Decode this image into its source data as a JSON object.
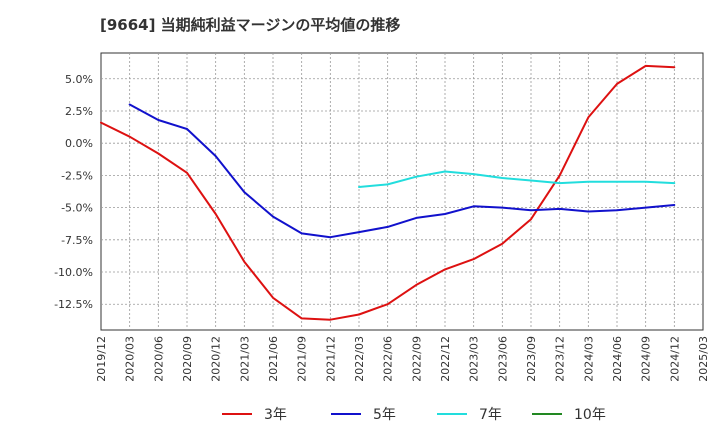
{
  "chart_data": {
    "type": "line",
    "title": "[9664]  当期純利益マージンの平均値の推移",
    "xlabel": "",
    "ylabel": "",
    "x_ticks": [
      "2019/12",
      "2020/03",
      "2020/06",
      "2020/09",
      "2020/12",
      "2021/03",
      "2021/06",
      "2021/09",
      "2021/12",
      "2022/03",
      "2022/06",
      "2022/09",
      "2022/12",
      "2023/03",
      "2023/06",
      "2023/09",
      "2023/12",
      "2024/03",
      "2024/06",
      "2024/09",
      "2024/12",
      "2025/03"
    ],
    "y_ticks": [
      5.0,
      2.5,
      0.0,
      -2.5,
      -5.0,
      -7.5,
      -10.0,
      -12.5
    ],
    "y_tick_labels": [
      "5.0%",
      "2.5%",
      "0.0%",
      "-2.5%",
      "-5.0%",
      "-7.5%",
      "-10.0%",
      "-12.5%"
    ],
    "ylim": [
      -14.5,
      7.0
    ],
    "grid": true,
    "legend_position": "bottom",
    "series": [
      {
        "name": "3年",
        "color": "#dd1111",
        "points": [
          [
            "2019/12",
            1.6
          ],
          [
            "2020/03",
            0.5
          ],
          [
            "2020/06",
            -0.8
          ],
          [
            "2020/09",
            -2.3
          ],
          [
            "2020/12",
            -5.5
          ],
          [
            "2021/03",
            -9.2
          ],
          [
            "2021/06",
            -12.0
          ],
          [
            "2021/09",
            -13.6
          ],
          [
            "2021/12",
            -13.7
          ],
          [
            "2022/03",
            -13.3
          ],
          [
            "2022/06",
            -12.5
          ],
          [
            "2022/09",
            -11.0
          ],
          [
            "2022/12",
            -9.8
          ],
          [
            "2023/03",
            -9.0
          ],
          [
            "2023/06",
            -7.8
          ],
          [
            "2023/09",
            -5.9
          ],
          [
            "2023/12",
            -2.5
          ],
          [
            "2024/03",
            2.0
          ],
          [
            "2024/06",
            4.6
          ],
          [
            "2024/09",
            6.0
          ],
          [
            "2024/12",
            5.9
          ]
        ]
      },
      {
        "name": "5年",
        "color": "#1111cc",
        "points": [
          [
            "2020/03",
            3.0
          ],
          [
            "2020/06",
            1.8
          ],
          [
            "2020/09",
            1.1
          ],
          [
            "2020/12",
            -1.0
          ],
          [
            "2021/03",
            -3.8
          ],
          [
            "2021/06",
            -5.7
          ],
          [
            "2021/09",
            -7.0
          ],
          [
            "2021/12",
            -7.3
          ],
          [
            "2022/03",
            -6.9
          ],
          [
            "2022/06",
            -6.5
          ],
          [
            "2022/09",
            -5.8
          ],
          [
            "2022/12",
            -5.5
          ],
          [
            "2023/03",
            -4.9
          ],
          [
            "2023/06",
            -5.0
          ],
          [
            "2023/09",
            -5.2
          ],
          [
            "2023/12",
            -5.1
          ],
          [
            "2024/03",
            -5.3
          ],
          [
            "2024/06",
            -5.2
          ],
          [
            "2024/09",
            -5.0
          ],
          [
            "2024/12",
            -4.8
          ]
        ]
      },
      {
        "name": "7年",
        "color": "#22dddd",
        "points": [
          [
            "2022/03",
            -3.4
          ],
          [
            "2022/06",
            -3.2
          ],
          [
            "2022/09",
            -2.6
          ],
          [
            "2022/12",
            -2.2
          ],
          [
            "2023/03",
            -2.4
          ],
          [
            "2023/06",
            -2.7
          ],
          [
            "2023/09",
            -2.9
          ],
          [
            "2023/12",
            -3.1
          ],
          [
            "2024/03",
            -3.0
          ],
          [
            "2024/06",
            -3.0
          ],
          [
            "2024/09",
            -3.0
          ],
          [
            "2024/12",
            -3.1
          ]
        ]
      },
      {
        "name": "10年",
        "color": "#228822",
        "points": []
      }
    ]
  }
}
